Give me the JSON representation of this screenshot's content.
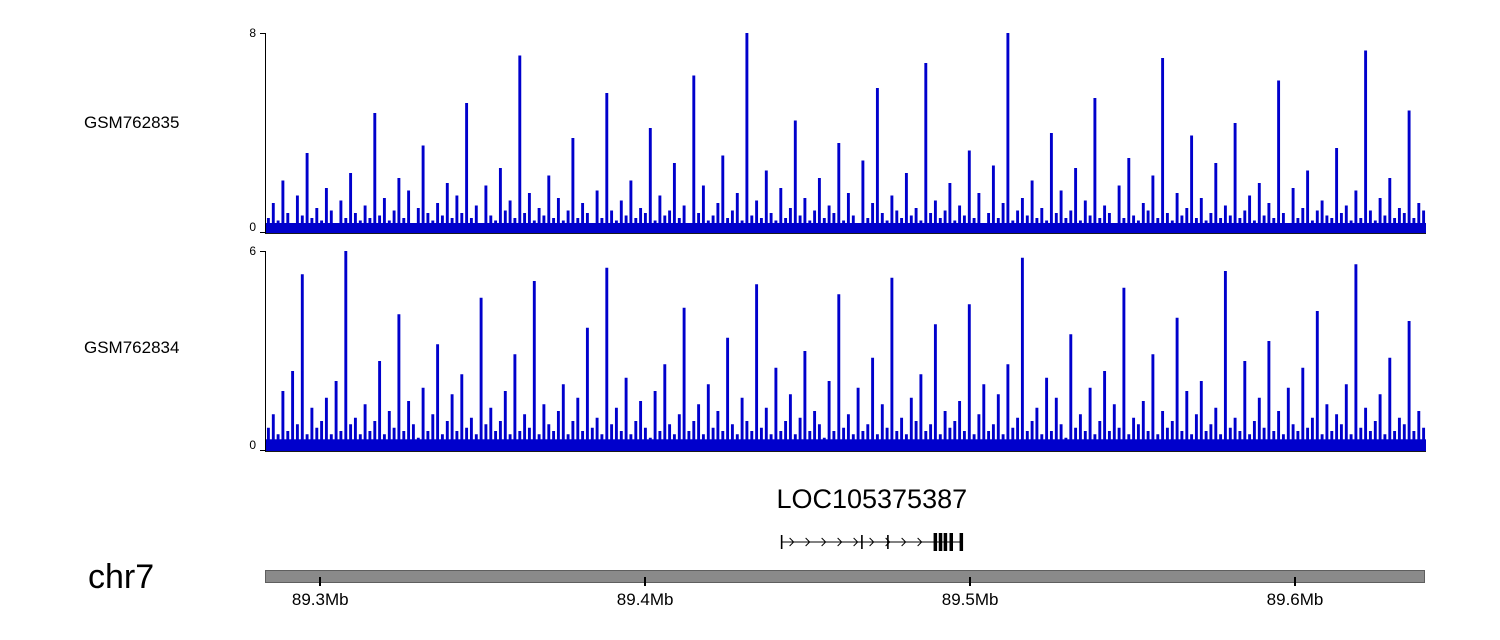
{
  "chart_data": {
    "type": "bar",
    "title": "",
    "legend": "none",
    "grid": false,
    "colors": {
      "signal": "#0000CC",
      "ideogram": "#8a8a8a",
      "gene": "#000000"
    },
    "axis": {
      "chromosome": "chr7",
      "range": [
        89.283,
        89.64
      ],
      "unit": "Mb",
      "ticks": [
        {
          "pos": 89.3,
          "label": "89.3Mb"
        },
        {
          "pos": 89.4,
          "label": "89.4Mb"
        },
        {
          "pos": 89.5,
          "label": "89.5Mb"
        },
        {
          "pos": 89.6,
          "label": "89.6Mb"
        }
      ]
    },
    "gene": {
      "name": "LOC105375387",
      "start": 89.442,
      "end": 89.4975,
      "strand": "+",
      "exons": [
        {
          "pos": 89.442,
          "h": "thin"
        },
        {
          "pos": 89.4667,
          "h": "thin"
        },
        {
          "pos": 89.4747,
          "h": "thin"
        },
        {
          "pos": 89.4893,
          "h": "thick"
        },
        {
          "pos": 89.4909,
          "h": "thick"
        },
        {
          "pos": 89.4924,
          "h": "thick"
        },
        {
          "pos": 89.4942,
          "h": "thick"
        },
        {
          "pos": 89.4973,
          "h": "thick"
        }
      ]
    },
    "tracks": [
      {
        "label": "GSM762835",
        "ylim": [
          0,
          8
        ],
        "baseline": 0.4,
        "values": [
          0.6,
          1.2,
          0.5,
          2.1,
          0.8,
          0.4,
          1.5,
          0.7,
          3.2,
          0.6,
          1.0,
          0.5,
          1.8,
          0.9,
          0.4,
          1.3,
          0.6,
          2.4,
          0.8,
          0.5,
          1.1,
          0.6,
          4.8,
          0.7,
          1.4,
          0.5,
          0.9,
          2.2,
          0.6,
          1.7,
          0.4,
          1.0,
          3.5,
          0.8,
          0.5,
          1.2,
          0.7,
          2.0,
          0.6,
          1.5,
          0.8,
          5.2,
          0.6,
          1.1,
          0.4,
          1.9,
          0.7,
          0.5,
          2.6,
          0.9,
          1.3,
          0.6,
          7.1,
          0.8,
          1.6,
          0.5,
          1.0,
          0.7,
          2.3,
          0.6,
          1.4,
          0.5,
          0.9,
          3.8,
          0.6,
          1.2,
          0.8,
          0.4,
          1.7,
          0.6,
          5.6,
          0.9,
          0.5,
          1.3,
          0.7,
          2.1,
          0.6,
          1.0,
          0.8,
          4.2,
          0.5,
          1.5,
          0.7,
          0.9,
          2.8,
          0.6,
          1.1,
          0.4,
          6.3,
          0.8,
          1.9,
          0.5,
          0.7,
          1.2,
          3.1,
          0.6,
          0.9,
          1.6,
          0.5,
          8.0,
          0.7,
          1.3,
          0.6,
          2.5,
          0.8,
          0.5,
          1.8,
          0.6,
          1.0,
          4.5,
          0.7,
          1.4,
          0.5,
          0.9,
          2.2,
          0.6,
          1.1,
          0.8,
          3.6,
          0.5,
          1.6,
          0.7,
          0.4,
          2.9,
          0.6,
          1.2,
          5.8,
          0.8,
          0.5,
          1.5,
          0.9,
          0.6,
          2.4,
          0.7,
          1.0,
          0.5,
          6.8,
          0.8,
          1.3,
          0.6,
          0.9,
          2.0,
          0.5,
          1.1,
          0.7,
          3.3,
          0.6,
          1.6,
          0.4,
          0.8,
          2.7,
          0.6,
          1.2,
          8.0,
          0.5,
          0.9,
          1.4,
          0.7,
          2.1,
          0.6,
          1.0,
          0.5,
          4.0,
          0.8,
          1.7,
          0.6,
          0.9,
          2.6,
          0.5,
          1.3,
          0.7,
          5.4,
          0.6,
          1.1,
          0.8,
          0.4,
          1.9,
          0.6,
          3.0,
          0.7,
          0.5,
          1.2,
          0.9,
          2.3,
          0.6,
          7.0,
          0.8,
          0.5,
          1.6,
          0.7,
          1.0,
          3.9,
          0.6,
          1.4,
          0.5,
          0.8,
          2.8,
          0.6,
          1.1,
          0.7,
          4.4,
          0.6,
          0.9,
          1.5,
          0.5,
          2.0,
          0.7,
          1.2,
          0.6,
          6.1,
          0.8,
          0.4,
          1.8,
          0.6,
          1.0,
          2.5,
          0.5,
          0.9,
          1.3,
          0.7,
          0.6,
          3.4,
          0.8,
          1.1,
          0.5,
          1.7,
          0.6,
          7.3,
          0.9,
          0.5,
          1.4,
          0.7,
          2.2,
          0.6,
          1.0,
          0.8,
          4.9,
          0.6,
          1.2,
          0.9
        ]
      },
      {
        "label": "GSM762834",
        "ylim": [
          0,
          6
        ],
        "baseline": 0.35,
        "values": [
          0.7,
          1.1,
          0.5,
          1.8,
          0.6,
          2.4,
          0.8,
          5.3,
          0.5,
          1.3,
          0.7,
          0.9,
          1.6,
          0.5,
          2.1,
          0.6,
          6.0,
          0.8,
          1.0,
          0.5,
          1.4,
          0.6,
          0.9,
          2.7,
          0.5,
          1.2,
          0.7,
          4.1,
          0.6,
          1.5,
          0.8,
          0.4,
          1.9,
          0.6,
          1.1,
          3.2,
          0.5,
          0.9,
          1.7,
          0.6,
          2.3,
          0.7,
          1.0,
          0.5,
          4.6,
          0.8,
          1.3,
          0.6,
          0.9,
          1.8,
          0.5,
          2.9,
          0.6,
          1.1,
          0.7,
          5.1,
          0.5,
          1.4,
          0.8,
          0.6,
          1.2,
          2.0,
          0.5,
          0.9,
          1.6,
          0.6,
          3.7,
          0.7,
          1.0,
          0.5,
          5.5,
          0.8,
          1.3,
          0.6,
          2.2,
          0.5,
          0.9,
          1.5,
          0.7,
          0.4,
          1.8,
          0.6,
          2.6,
          0.8,
          0.5,
          1.1,
          4.3,
          0.6,
          0.9,
          1.4,
          0.5,
          2.0,
          0.7,
          1.2,
          0.6,
          3.4,
          0.8,
          0.5,
          1.6,
          0.9,
          0.6,
          5.0,
          0.7,
          1.3,
          0.5,
          2.5,
          0.6,
          0.9,
          1.7,
          0.5,
          1.0,
          3.0,
          0.6,
          1.2,
          0.8,
          0.4,
          2.1,
          0.6,
          4.7,
          0.7,
          1.1,
          0.5,
          1.9,
          0.6,
          0.8,
          2.8,
          0.5,
          1.4,
          0.7,
          5.2,
          0.6,
          1.0,
          0.5,
          1.6,
          0.9,
          2.3,
          0.6,
          0.8,
          3.8,
          0.5,
          1.2,
          0.7,
          0.9,
          1.5,
          0.6,
          4.4,
          0.5,
          1.1,
          2.0,
          0.6,
          0.8,
          1.7,
          0.5,
          2.6,
          0.7,
          1.0,
          5.8,
          0.6,
          0.9,
          1.3,
          0.5,
          2.2,
          0.6,
          1.6,
          0.8,
          0.4,
          3.5,
          0.7,
          1.1,
          0.6,
          1.9,
          0.5,
          0.9,
          2.4,
          0.6,
          1.4,
          0.7,
          4.9,
          0.5,
          1.0,
          0.8,
          1.5,
          0.6,
          2.9,
          0.5,
          1.2,
          0.7,
          0.9,
          4.0,
          0.6,
          1.8,
          0.5,
          1.1,
          2.1,
          0.6,
          0.8,
          1.3,
          0.5,
          5.4,
          0.7,
          1.0,
          0.6,
          2.7,
          0.5,
          0.9,
          1.6,
          0.7,
          3.3,
          0.6,
          1.2,
          0.5,
          1.9,
          0.8,
          0.6,
          2.5,
          0.7,
          1.0,
          4.2,
          0.5,
          1.4,
          0.6,
          1.1,
          0.8,
          2.0,
          0.5,
          5.6,
          0.7,
          1.3,
          0.6,
          0.9,
          1.7,
          0.5,
          2.8,
          0.6,
          1.0,
          0.8,
          3.9,
          0.6,
          1.2,
          0.7
        ]
      }
    ]
  }
}
